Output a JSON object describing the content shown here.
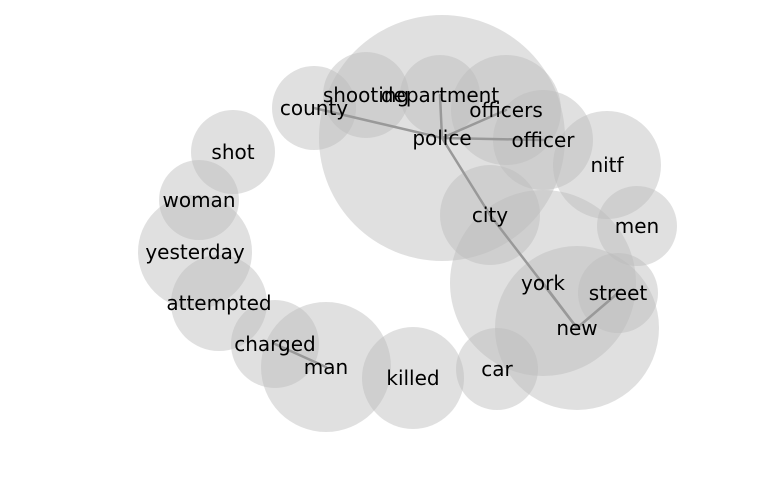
{
  "diagram": {
    "type": "word-cooccurrence-bubble-graph",
    "bubble_color": "#bbbbbb",
    "edge_color": "#999999",
    "text_color": "#000000",
    "nodes": [
      {
        "id": "police",
        "label": "police"
      },
      {
        "id": "city",
        "label": "city"
      },
      {
        "id": "york",
        "label": "york"
      },
      {
        "id": "new",
        "label": "new"
      },
      {
        "id": "officers",
        "label": "officers"
      },
      {
        "id": "officer",
        "label": "officer"
      },
      {
        "id": "department",
        "label": "department"
      },
      {
        "id": "shooting",
        "label": "shooting"
      },
      {
        "id": "county",
        "label": "county"
      },
      {
        "id": "nitf",
        "label": "nitf"
      },
      {
        "id": "men",
        "label": "men"
      },
      {
        "id": "street",
        "label": "street"
      },
      {
        "id": "car",
        "label": "car"
      },
      {
        "id": "killed",
        "label": "killed"
      },
      {
        "id": "man",
        "label": "man"
      },
      {
        "id": "charged",
        "label": "charged"
      },
      {
        "id": "attempted",
        "label": "attempted"
      },
      {
        "id": "yesterday",
        "label": "yesterday"
      },
      {
        "id": "woman",
        "label": "woman"
      },
      {
        "id": "shot",
        "label": "shot"
      }
    ],
    "edges": [
      {
        "source": "police",
        "target": "department"
      },
      {
        "source": "police",
        "target": "county"
      },
      {
        "source": "police",
        "target": "officer"
      },
      {
        "source": "police",
        "target": "officers"
      },
      {
        "source": "police",
        "target": "city"
      },
      {
        "source": "city",
        "target": "new"
      },
      {
        "source": "york",
        "target": "new"
      },
      {
        "source": "new",
        "target": "street"
      },
      {
        "source": "man",
        "target": "charged"
      }
    ]
  }
}
